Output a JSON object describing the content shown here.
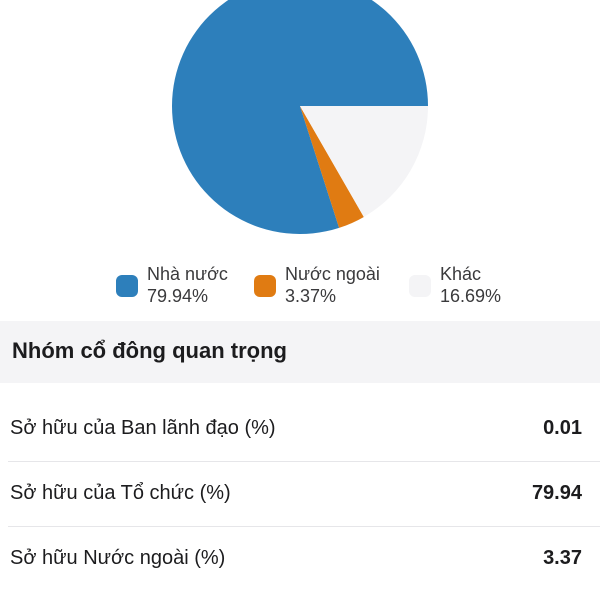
{
  "chart_data": {
    "type": "pie",
    "slices": [
      {
        "label": "Nhà nước",
        "value": 79.94,
        "display": "79.94%",
        "color": "#2d7fbb"
      },
      {
        "label": "Nước ngoài",
        "value": 3.37,
        "display": "3.37%",
        "color": "#e07b12"
      },
      {
        "label": "Khác",
        "value": 16.69,
        "display": "16.69%",
        "color": "#f4f4f6"
      }
    ],
    "legend_position": "bottom"
  },
  "section": {
    "title": "Nhóm cổ đông quan trọng"
  },
  "rows": [
    {
      "label": "Sở hữu của Ban lãnh đạo (%)",
      "value": "0.01"
    },
    {
      "label": "Sở hữu của Tổ chức (%)",
      "value": "79.94"
    },
    {
      "label": "Sở hữu Nước ngoài (%)",
      "value": "3.37"
    }
  ]
}
